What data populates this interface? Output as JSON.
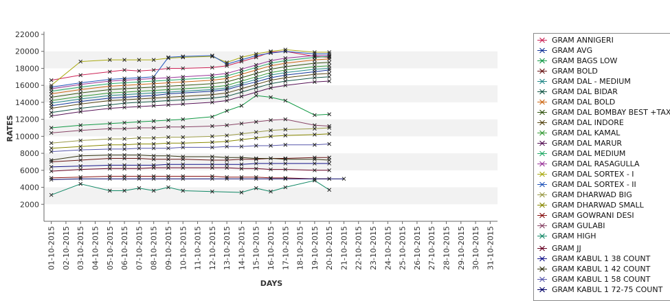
{
  "chart_data": {
    "type": "line",
    "xlabel": "DAYS",
    "ylabel": "RATES",
    "ylim": [
      0,
      22000
    ],
    "yticks": [
      2000,
      4000,
      6000,
      8000,
      10000,
      12000,
      14000,
      16000,
      18000,
      20000,
      22000
    ],
    "grid": "alternating horizontal bands",
    "legend_position": "right",
    "x": [
      "01-10-2015",
      "02-10-2015",
      "03-10-2015",
      "04-10-2015",
      "05-10-2015",
      "06-10-2015",
      "07-10-2015",
      "08-10-2015",
      "09-10-2015",
      "10-10-2015",
      "11-10-2015",
      "12-10-2015",
      "13-10-2015",
      "14-10-2015",
      "15-10-2015",
      "16-10-2015",
      "17-10-2015",
      "18-10-2015",
      "19-10-2015",
      "20-10-2015",
      "21-10-2015",
      "22-10-2015",
      "23-10-2015",
      "24-10-2015",
      "25-10-2015",
      "26-10-2015",
      "27-10-2015",
      "28-10-2015",
      "29-10-2015",
      "30-10-2015",
      "31-10-2015"
    ],
    "series": [
      {
        "name": "GRAM ANNIGERI",
        "color": "#cc2255",
        "values": {
          "01-10-2015": 16600,
          "03-10-2015": 17200,
          "05-10-2015": 17600,
          "06-10-2015": 17800,
          "07-10-2015": 17700,
          "08-10-2015": 17800,
          "09-10-2015": 18000,
          "10-10-2015": 18000,
          "12-10-2015": 18100,
          "13-10-2015": 18300,
          "14-10-2015": 18800,
          "15-10-2015": 19300,
          "16-10-2015": 19900,
          "17-10-2015": 20000,
          "19-10-2015": 19400,
          "20-10-2015": 19300
        }
      },
      {
        "name": "GRAM AVG",
        "color": "#113399",
        "values": {
          "01-10-2015": 13600,
          "03-10-2015": 14100,
          "05-10-2015": 14500,
          "06-10-2015": 14600,
          "07-10-2015": 14700,
          "08-10-2015": 14800,
          "09-10-2015": 15000,
          "10-10-2015": 15100,
          "12-10-2015": 15300,
          "13-10-2015": 15500,
          "14-10-2015": 16000,
          "15-10-2015": 16400,
          "16-10-2015": 16900,
          "17-10-2015": 17200,
          "19-10-2015": 17600,
          "20-10-2015": 17800
        }
      },
      {
        "name": "GRAM BAGS LOW",
        "color": "#119944",
        "values": {
          "01-10-2015": 11000,
          "03-10-2015": 11300,
          "05-10-2015": 11500,
          "06-10-2015": 11600,
          "07-10-2015": 11700,
          "08-10-2015": 11800,
          "09-10-2015": 11900,
          "10-10-2015": 12000,
          "12-10-2015": 12300,
          "13-10-2015": 13000,
          "14-10-2015": 13600,
          "15-10-2015": 14800,
          "16-10-2015": 14600,
          "17-10-2015": 14200,
          "19-10-2015": 12500,
          "20-10-2015": 12600
        }
      },
      {
        "name": "GRAM BOLD",
        "color": "#661111",
        "values": {
          "01-10-2015": 7000,
          "03-10-2015": 7200,
          "05-10-2015": 7400,
          "06-10-2015": 7400,
          "07-10-2015": 7400,
          "08-10-2015": 7300,
          "09-10-2015": 7300,
          "10-10-2015": 7300,
          "12-10-2015": 7200,
          "13-10-2015": 7200,
          "14-10-2015": 7300,
          "15-10-2015": 7300,
          "16-10-2015": 7400,
          "17-10-2015": 7400,
          "19-10-2015": 7500,
          "20-10-2015": 7500
        }
      },
      {
        "name": "GRAM DAL - MEDIUM",
        "color": "#228888",
        "values": {
          "01-10-2015": 13900,
          "03-10-2015": 14400,
          "05-10-2015": 14800,
          "06-10-2015": 14900,
          "07-10-2015": 15000,
          "08-10-2015": 15100,
          "09-10-2015": 15200,
          "10-10-2015": 15300,
          "12-10-2015": 15500,
          "13-10-2015": 15700,
          "14-10-2015": 16200,
          "15-10-2015": 16700,
          "16-10-2015": 17200,
          "17-10-2015": 17500,
          "19-10-2015": 17900,
          "20-10-2015": 18000
        }
      },
      {
        "name": "GRAM DAL BIDAR",
        "color": "#115544",
        "values": {
          "01-10-2015": 12800,
          "03-10-2015": 13300,
          "05-10-2015": 13700,
          "06-10-2015": 13900,
          "07-10-2015": 14000,
          "08-10-2015": 14100,
          "09-10-2015": 14200,
          "10-10-2015": 14300,
          "12-10-2015": 14500,
          "13-10-2015": 14700,
          "14-10-2015": 15200,
          "15-10-2015": 15700,
          "16-10-2015": 16200,
          "17-10-2015": 16500,
          "19-10-2015": 16900,
          "20-10-2015": 17000
        }
      },
      {
        "name": "GRAM DAL BOLD",
        "color": "#cc6611",
        "values": {
          "01-10-2015": 15000,
          "03-10-2015": 15500,
          "05-10-2015": 15900,
          "06-10-2015": 16000,
          "07-10-2015": 16100,
          "08-10-2015": 16200,
          "09-10-2015": 16300,
          "10-10-2015": 16400,
          "12-10-2015": 16600,
          "13-10-2015": 16800,
          "14-10-2015": 17300,
          "15-10-2015": 17800,
          "16-10-2015": 18300,
          "17-10-2015": 18600,
          "19-10-2015": 19000,
          "20-10-2015": 19100
        }
      },
      {
        "name": "GRAM DAL BOMBAY BEST +TAX",
        "color": "#335511",
        "values": {
          "01-10-2015": 14600,
          "03-10-2015": 15100,
          "05-10-2015": 15500,
          "06-10-2015": 15600,
          "07-10-2015": 15700,
          "08-10-2015": 15800,
          "09-10-2015": 15900,
          "10-10-2015": 16000,
          "12-10-2015": 16200,
          "13-10-2015": 16400,
          "14-10-2015": 16900,
          "15-10-2015": 17400,
          "16-10-2015": 17900,
          "17-10-2015": 18200,
          "19-10-2015": 18600,
          "20-10-2015": 18700
        }
      },
      {
        "name": "GRAM DAL INDORE",
        "color": "#554411",
        "values": {
          "01-10-2015": 13300,
          "03-10-2015": 13800,
          "05-10-2015": 14200,
          "06-10-2015": 14300,
          "07-10-2015": 14400,
          "08-10-2015": 14500,
          "09-10-2015": 14600,
          "10-10-2015": 14700,
          "12-10-2015": 14900,
          "13-10-2015": 15100,
          "14-10-2015": 15600,
          "15-10-2015": 16100,
          "16-10-2015": 16600,
          "17-10-2015": 16900,
          "19-10-2015": 17300,
          "20-10-2015": 17400
        }
      },
      {
        "name": "GRAM DAL KAMAL",
        "color": "#339933",
        "values": {
          "01-10-2015": 14200,
          "03-10-2015": 14700,
          "05-10-2015": 15100,
          "06-10-2015": 15200,
          "07-10-2015": 15300,
          "08-10-2015": 15400,
          "09-10-2015": 15500,
          "10-10-2015": 15600,
          "12-10-2015": 15800,
          "13-10-2015": 16000,
          "14-10-2015": 16500,
          "15-10-2015": 17000,
          "16-10-2015": 17500,
          "17-10-2015": 17800,
          "19-10-2015": 18200,
          "20-10-2015": 18300
        }
      },
      {
        "name": "GRAM DAL MARUR",
        "color": "#551155",
        "values": {
          "01-10-2015": 12400,
          "03-10-2015": 12900,
          "05-10-2015": 13300,
          "06-10-2015": 13400,
          "07-10-2015": 13500,
          "08-10-2015": 13600,
          "09-10-2015": 13700,
          "10-10-2015": 13800,
          "12-10-2015": 14000,
          "13-10-2015": 14200,
          "14-10-2015": 14700,
          "15-10-2015": 15200,
          "16-10-2015": 15700,
          "17-10-2015": 16000,
          "19-10-2015": 16400,
          "20-10-2015": 16500
        }
      },
      {
        "name": "GRAM DAL MEDIUM",
        "color": "#22aa66",
        "values": {
          "01-10-2015": 15300,
          "03-10-2015": 15800,
          "05-10-2015": 16200,
          "06-10-2015": 16300,
          "07-10-2015": 16400,
          "08-10-2015": 16500,
          "09-10-2015": 16600,
          "10-10-2015": 16700,
          "12-10-2015": 16900,
          "13-10-2015": 17100,
          "14-10-2015": 17600,
          "15-10-2015": 18100,
          "16-10-2015": 18600,
          "17-10-2015": 18900,
          "19-10-2015": 19300,
          "20-10-2015": 19400
        }
      },
      {
        "name": "GRAM DAL RASAGULLA",
        "color": "#993399",
        "values": {
          "01-10-2015": 15600,
          "03-10-2015": 16100,
          "05-10-2015": 16500,
          "06-10-2015": 16600,
          "07-10-2015": 16700,
          "08-10-2015": 16800,
          "09-10-2015": 16900,
          "10-10-2015": 17000,
          "12-10-2015": 17200,
          "13-10-2015": 17400,
          "14-10-2015": 17900,
          "15-10-2015": 18400,
          "16-10-2015": 18900,
          "17-10-2015": 19200,
          "19-10-2015": 19500,
          "20-10-2015": 19500
        }
      },
      {
        "name": "GRAM DAL SORTEX  - I",
        "color": "#aaaa11",
        "values": {
          "01-10-2015": 16000,
          "03-10-2015": 18800,
          "05-10-2015": 19000,
          "06-10-2015": 19000,
          "07-10-2015": 19000,
          "08-10-2015": 19000,
          "09-10-2015": 19200,
          "10-10-2015": 19300,
          "12-10-2015": 19400,
          "13-10-2015": 18700,
          "14-10-2015": 19300,
          "15-10-2015": 19700,
          "16-10-2015": 20000,
          "17-10-2015": 20200,
          "19-10-2015": 19900,
          "20-10-2015": 19900
        }
      },
      {
        "name": "GRAM DAL SORTEX - II",
        "color": "#2255bb",
        "values": {
          "01-10-2015": 15800,
          "03-10-2015": 16300,
          "05-10-2015": 16700,
          "06-10-2015": 16800,
          "07-10-2015": 16900,
          "08-10-2015": 17000,
          "09-10-2015": 19300,
          "10-10-2015": 19400,
          "12-10-2015": 19500,
          "13-10-2015": 18500,
          "14-10-2015": 19000,
          "15-10-2015": 19500,
          "16-10-2015": 19800,
          "17-10-2015": 20000,
          "19-10-2015": 19700,
          "20-10-2015": 19700
        }
      },
      {
        "name": "GRAM DHARWAD BIG",
        "color": "#999944",
        "values": {
          "01-10-2015": 9200,
          "03-10-2015": 9500,
          "05-10-2015": 9700,
          "06-10-2015": 9700,
          "07-10-2015": 9800,
          "08-10-2015": 9800,
          "09-10-2015": 9900,
          "10-10-2015": 9900,
          "12-10-2015": 10000,
          "13-10-2015": 10100,
          "14-10-2015": 10300,
          "15-10-2015": 10500,
          "16-10-2015": 10700,
          "17-10-2015": 10800,
          "19-10-2015": 10900,
          "20-10-2015": 11000
        }
      },
      {
        "name": "GRAM DHARWAD SMALL",
        "color": "#888800",
        "values": {
          "01-10-2015": 8600,
          "03-10-2015": 8800,
          "05-10-2015": 9000,
          "06-10-2015": 9000,
          "07-10-2015": 9100,
          "08-10-2015": 9100,
          "09-10-2015": 9200,
          "10-10-2015": 9200,
          "12-10-2015": 9300,
          "13-10-2015": 9400,
          "14-10-2015": 9600,
          "15-10-2015": 9800,
          "16-10-2015": 10000,
          "17-10-2015": 10100,
          "19-10-2015": 10200,
          "20-10-2015": 10300
        }
      },
      {
        "name": "GRAM GOWRANI DESI",
        "color": "#881111",
        "values": {
          "01-10-2015": 5100,
          "03-10-2015": 5200,
          "05-10-2015": 5300,
          "06-10-2015": 5300,
          "07-10-2015": 5300,
          "08-10-2015": 5300,
          "09-10-2015": 5300,
          "10-10-2015": 5300,
          "12-10-2015": 5300,
          "13-10-2015": 5200,
          "14-10-2015": 5200,
          "15-10-2015": 5200,
          "16-10-2015": 5100,
          "17-10-2015": 5100,
          "19-10-2015": 5000,
          "20-10-2015": 5000
        }
      },
      {
        "name": "GRAM GULABI",
        "color": "#884466",
        "values": {
          "01-10-2015": 10400,
          "03-10-2015": 10700,
          "05-10-2015": 10900,
          "06-10-2015": 10900,
          "07-10-2015": 11000,
          "08-10-2015": 11000,
          "09-10-2015": 11100,
          "10-10-2015": 11100,
          "12-10-2015": 11200,
          "13-10-2015": 11300,
          "14-10-2015": 11500,
          "15-10-2015": 11700,
          "16-10-2015": 11900,
          "17-10-2015": 12000,
          "19-10-2015": 11300,
          "20-10-2015": 11200
        }
      },
      {
        "name": "GRAM HIGH",
        "color": "#118866",
        "values": {
          "01-10-2015": 3100,
          "03-10-2015": 4400,
          "05-10-2015": 3600,
          "06-10-2015": 3600,
          "07-10-2015": 3900,
          "08-10-2015": 3600,
          "09-10-2015": 4000,
          "10-10-2015": 3600,
          "12-10-2015": 3500,
          "14-10-2015": 3400,
          "15-10-2015": 3900,
          "16-10-2015": 3500,
          "17-10-2015": 4000,
          "19-10-2015": 4800,
          "20-10-2015": 3700
        }
      },
      {
        "name": "GRAM JJ",
        "color": "#660022",
        "values": {
          "01-10-2015": 5900,
          "03-10-2015": 6100,
          "05-10-2015": 6200,
          "06-10-2015": 6200,
          "07-10-2015": 6200,
          "08-10-2015": 6300,
          "09-10-2015": 6300,
          "10-10-2015": 6300,
          "12-10-2015": 6300,
          "13-10-2015": 6300,
          "14-10-2015": 6200,
          "15-10-2015": 6200,
          "16-10-2015": 6100,
          "17-10-2015": 6100,
          "19-10-2015": 6000,
          "20-10-2015": 6000
        }
      },
      {
        "name": "GRAM KABUL 1 38 COUNT",
        "color": "#111188",
        "values": {
          "01-10-2015": 6400,
          "03-10-2015": 6500,
          "05-10-2015": 6600,
          "06-10-2015": 6600,
          "07-10-2015": 6600,
          "08-10-2015": 6600,
          "09-10-2015": 6700,
          "10-10-2015": 6700,
          "12-10-2015": 6700,
          "13-10-2015": 6700,
          "14-10-2015": 6700,
          "15-10-2015": 6800,
          "16-10-2015": 6800,
          "17-10-2015": 6800,
          "19-10-2015": 6800,
          "20-10-2015": 6800
        }
      },
      {
        "name": "GRAM KABUL 1 42 COUNT",
        "color": "#333311",
        "values": {
          "01-10-2015": 7200,
          "03-10-2015": 7700,
          "05-10-2015": 7800,
          "06-10-2015": 7800,
          "07-10-2015": 7800,
          "08-10-2015": 7700,
          "09-10-2015": 7700,
          "10-10-2015": 7600,
          "12-10-2015": 7600,
          "13-10-2015": 7500,
          "14-10-2015": 7500,
          "15-10-2015": 7400,
          "16-10-2015": 7400,
          "17-10-2015": 7300,
          "19-10-2015": 7300,
          "20-10-2015": 7200
        }
      },
      {
        "name": "GRAM KABUL 1 58 COUNT",
        "color": "#5555aa",
        "values": {
          "01-10-2015": 8200,
          "03-10-2015": 8400,
          "05-10-2015": 8500,
          "06-10-2015": 8500,
          "07-10-2015": 8600,
          "08-10-2015": 8600,
          "09-10-2015": 8600,
          "10-10-2015": 8700,
          "12-10-2015": 8700,
          "13-10-2015": 8800,
          "14-10-2015": 8800,
          "15-10-2015": 8900,
          "16-10-2015": 8900,
          "17-10-2015": 9000,
          "19-10-2015": 9000,
          "20-10-2015": 9100
        }
      },
      {
        "name": "GRAM KABUL 1 72-75 COUNT",
        "color": "#000066",
        "values": {
          "01-10-2015": 4900,
          "03-10-2015": 5000,
          "05-10-2015": 5000,
          "06-10-2015": 5000,
          "07-10-2015": 5000,
          "08-10-2015": 5000,
          "09-10-2015": 5000,
          "10-10-2015": 5000,
          "12-10-2015": 5000,
          "13-10-2015": 5000,
          "14-10-2015": 5000,
          "15-10-2015": 5000,
          "16-10-2015": 5000,
          "17-10-2015": 5000,
          "19-10-2015": 5000,
          "20-10-2015": 5000,
          "21-10-2015": 5000
        }
      }
    ]
  }
}
